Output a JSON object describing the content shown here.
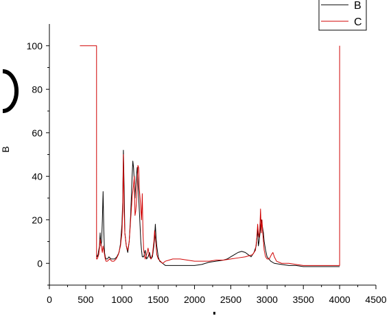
{
  "chart_data": {
    "type": "line",
    "title": "",
    "xlabel": "",
    "ylabel": "B",
    "xlim": [
      0,
      4500
    ],
    "ylim": [
      -10,
      110
    ],
    "x_ticks": [
      0,
      500,
      1000,
      1500,
      2000,
      2500,
      3000,
      3500,
      4000,
      4500
    ],
    "y_ticks": [
      0,
      20,
      40,
      60,
      80,
      100
    ],
    "grid": false,
    "legend_position": "top-right",
    "series": [
      {
        "name": "B",
        "color": "#000000",
        "x": [
          650,
          660,
          670,
          680,
          690,
          700,
          710,
          720,
          730,
          740,
          750,
          760,
          770,
          780,
          800,
          820,
          850,
          880,
          900,
          930,
          960,
          980,
          1000,
          1010,
          1020,
          1030,
          1040,
          1060,
          1080,
          1100,
          1120,
          1140,
          1150,
          1160,
          1170,
          1180,
          1190,
          1200,
          1210,
          1220,
          1240,
          1260,
          1270,
          1280,
          1300,
          1320,
          1340,
          1360,
          1380,
          1400,
          1420,
          1440,
          1450,
          1460,
          1470,
          1480,
          1500,
          1520,
          1560,
          1600,
          1650,
          1700,
          1800,
          1900,
          2000,
          2100,
          2200,
          2300,
          2400,
          2450,
          2500,
          2550,
          2600,
          2650,
          2700,
          2740,
          2780,
          2820,
          2850,
          2860,
          2870,
          2880,
          2890,
          2900,
          2910,
          2920,
          2930,
          2940,
          2950,
          2960,
          2980,
          3000,
          3050,
          3100,
          3200,
          3300,
          3400,
          3500,
          3600,
          3700,
          3800,
          3900,
          4000
        ],
        "y": [
          4,
          3,
          4,
          6,
          8,
          14,
          8,
          10,
          20,
          33,
          15,
          5,
          3,
          2,
          2,
          3,
          2,
          2,
          2,
          3,
          5,
          9,
          18,
          28,
          52,
          35,
          14,
          8,
          5,
          10,
          22,
          40,
          47,
          44,
          38,
          30,
          36,
          40,
          44,
          38,
          24,
          10,
          6,
          3,
          3,
          6,
          2,
          3,
          5,
          2,
          3,
          8,
          12,
          18,
          12,
          8,
          3,
          1,
          0,
          -1,
          -1,
          -1,
          -1,
          -1,
          -1,
          -0.5,
          0.5,
          1,
          1.5,
          2,
          3,
          4,
          5,
          5.5,
          5,
          4,
          3,
          5,
          8,
          12,
          16,
          8,
          10,
          13,
          17,
          20,
          18,
          16,
          14,
          10,
          6,
          3,
          1,
          0,
          -0.5,
          -1,
          -1,
          -1.5,
          -1.5,
          -1.5,
          -1.5,
          -1.5,
          -1.5
        ]
      },
      {
        "name": "C",
        "color": "#d00000",
        "x": [
          420,
          650,
          650,
          660,
          670,
          680,
          690,
          700,
          710,
          720,
          730,
          740,
          750,
          760,
          770,
          780,
          800,
          830,
          860,
          890,
          920,
          950,
          980,
          1000,
          1010,
          1020,
          1030,
          1040,
          1060,
          1080,
          1100,
          1120,
          1140,
          1160,
          1170,
          1180,
          1190,
          1200,
          1210,
          1220,
          1230,
          1240,
          1250,
          1260,
          1270,
          1280,
          1290,
          1300,
          1320,
          1340,
          1360,
          1380,
          1400,
          1420,
          1440,
          1450,
          1460,
          1470,
          1480,
          1500,
          1530,
          1560,
          1600,
          1650,
          1700,
          1800,
          1900,
          2000,
          2100,
          2200,
          2300,
          2400,
          2500,
          2600,
          2700,
          2750,
          2800,
          2840,
          2860,
          2870,
          2880,
          2890,
          2900,
          2910,
          2920,
          2930,
          2940,
          2950,
          2960,
          2980,
          3000,
          3030,
          3060,
          3080,
          3100,
          3130,
          3200,
          3300,
          3400,
          3500,
          3600,
          3700,
          3800,
          3900,
          4000,
          4000
        ],
        "y": [
          100,
          100,
          2,
          2,
          3,
          4,
          7,
          11,
          9,
          7,
          5,
          8,
          6,
          4,
          2,
          1,
          1,
          2,
          1,
          1,
          2,
          4,
          8,
          14,
          24,
          50,
          24,
          14,
          8,
          6,
          10,
          20,
          30,
          36,
          40,
          22,
          24,
          28,
          36,
          45,
          44,
          34,
          30,
          25,
          20,
          32,
          14,
          6,
          2,
          4,
          7,
          3,
          2,
          4,
          10,
          15,
          12,
          8,
          4,
          2,
          1,
          0,
          1,
          1.5,
          2,
          2,
          1.5,
          1,
          1,
          1,
          1.5,
          1.5,
          2,
          2.5,
          3,
          3.5,
          4,
          6,
          12,
          18,
          14,
          12,
          16,
          25,
          14,
          20,
          14,
          10,
          6,
          3,
          2,
          2,
          4,
          5,
          3,
          1,
          0,
          0,
          -0.5,
          -1,
          -1,
          -1,
          -1,
          -1,
          -1,
          100
        ]
      }
    ]
  }
}
